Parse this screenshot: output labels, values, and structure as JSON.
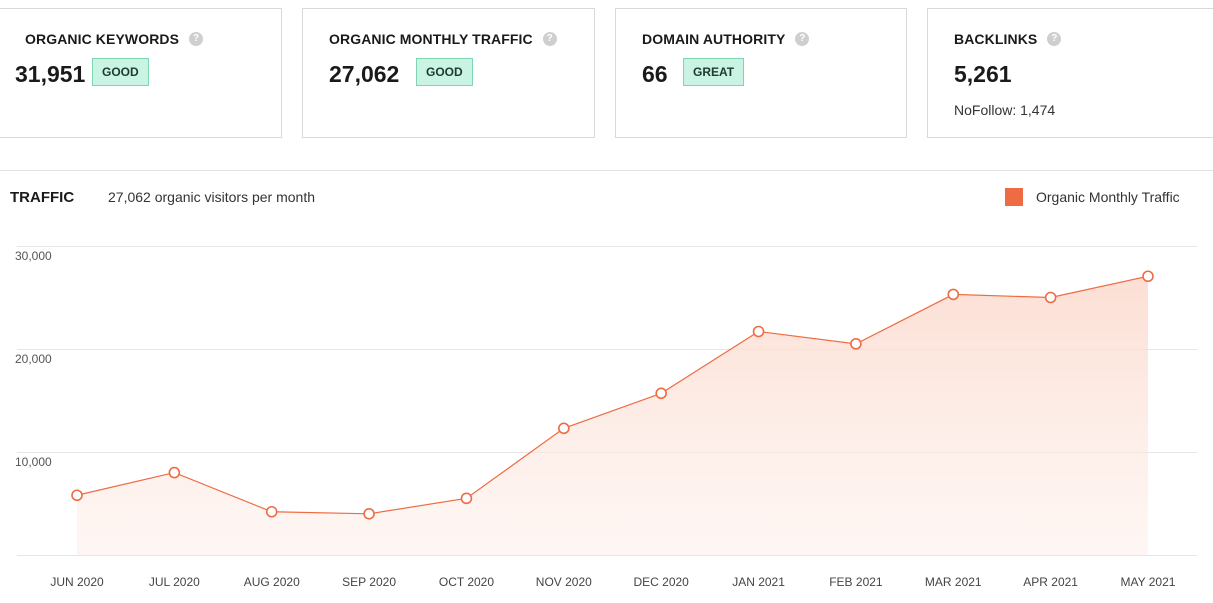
{
  "cards": [
    {
      "title": "ORGANIC KEYWORDS",
      "value": "31,951",
      "badge": "GOOD"
    },
    {
      "title": "ORGANIC MONTHLY TRAFFIC",
      "value": "27,062",
      "badge": "GOOD"
    },
    {
      "title": "DOMAIN AUTHORITY",
      "value": "66",
      "badge": "GREAT"
    },
    {
      "title": "BACKLINKS",
      "value": "5,261",
      "sub": "NoFollow: 1,474"
    }
  ],
  "help_glyph": "?",
  "traffic": {
    "title": "TRAFFIC",
    "subtitle": "27,062 organic visitors per month"
  },
  "colors": {
    "accent": "#ef6b43",
    "badge_bg": "#c9f3e3",
    "grid": "#e6e6e6"
  },
  "chart_data": {
    "type": "area",
    "categories": [
      "JUN 2020",
      "JUL 2020",
      "AUG 2020",
      "SEP 2020",
      "OCT 2020",
      "NOV 2020",
      "DEC 2020",
      "JAN 2021",
      "FEB 2021",
      "MAR 2021",
      "APR 2021",
      "MAY 2021"
    ],
    "series": [
      {
        "name": "Organic Monthly Traffic",
        "values": [
          5800,
          8000,
          4200,
          4000,
          5500,
          12300,
          15700,
          21700,
          20500,
          25300,
          25000,
          27062
        ]
      }
    ],
    "yticks": [
      "30,000",
      "20,000",
      "10,000"
    ],
    "ylim": [
      0,
      30000
    ],
    "grid": true,
    "legend": "top-right",
    "title": "",
    "xlabel": "",
    "ylabel": ""
  }
}
